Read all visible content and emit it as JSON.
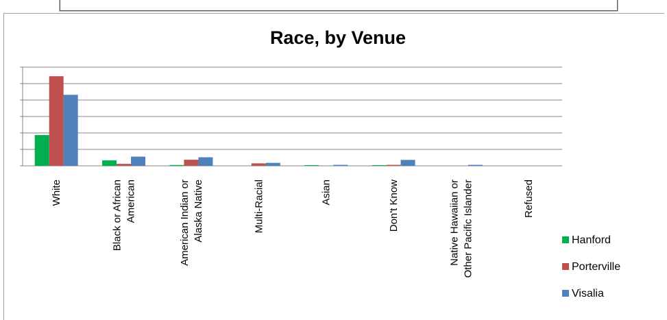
{
  "chart_data": {
    "type": "bar",
    "title": "Race, by Venue",
    "xlabel": "",
    "ylabel": "",
    "ylim": [
      0,
      6
    ],
    "gridlines": true,
    "y_tick_labels_visible": false,
    "legend_position": "right",
    "categories": [
      [
        "White"
      ],
      [
        "Black or African",
        "American"
      ],
      [
        "American Indian or",
        "Alaska Native"
      ],
      [
        "Multi-Racial"
      ],
      [
        "Asian"
      ],
      [
        "Don't Know"
      ],
      [
        "Native Hawaiian or",
        "Other Pacific Islander"
      ],
      [
        "Refused"
      ]
    ],
    "series": [
      {
        "name": "Hanford",
        "color": "#00b050",
        "values": [
          1.87,
          0.33,
          0.05,
          0.0,
          0.04,
          0.04,
          0.0,
          0.0
        ]
      },
      {
        "name": "Porterville",
        "color": "#c0504d",
        "values": [
          5.45,
          0.12,
          0.37,
          0.15,
          0.0,
          0.06,
          0.0,
          0.0
        ]
      },
      {
        "name": "Visalia",
        "color": "#4f81bd",
        "values": [
          4.32,
          0.56,
          0.52,
          0.18,
          0.06,
          0.36,
          0.06,
          0.0
        ]
      }
    ]
  }
}
